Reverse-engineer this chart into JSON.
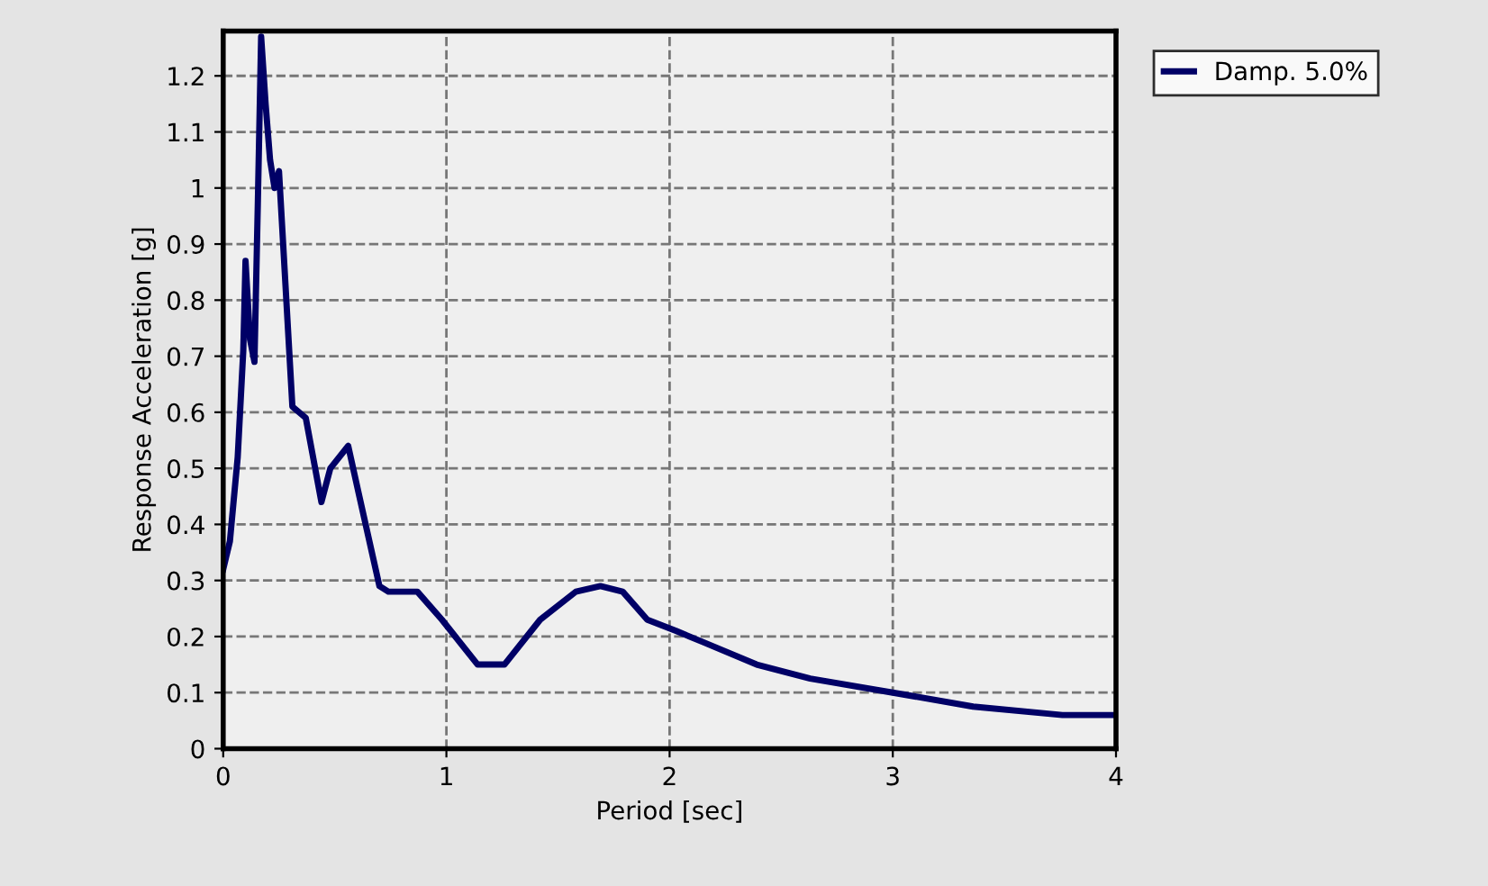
{
  "chart_data": {
    "type": "line",
    "xlabel": "Period [sec]",
    "ylabel": "Response Acceleration [g]",
    "xlim": [
      0,
      4
    ],
    "ylim": [
      0,
      1.28
    ],
    "xticks": [
      0,
      1,
      2,
      3,
      4
    ],
    "yticks": [
      0,
      0.1,
      0.2,
      0.3,
      0.4,
      0.5,
      0.6,
      0.7,
      0.8,
      0.9,
      1,
      1.1,
      1.2
    ],
    "grid": true,
    "legend": "top right",
    "marker": "none",
    "line_style": "solid",
    "series": [
      {
        "name": "Damp. 5.0%",
        "color": "#000066",
        "x": [
          0,
          0.03,
          0.065,
          0.09,
          0.1,
          0.12,
          0.14,
          0.155,
          0.17,
          0.19,
          0.21,
          0.23,
          0.25,
          0.27,
          0.31,
          0.37,
          0.44,
          0.48,
          0.56,
          0.61,
          0.7,
          0.74,
          0.87,
          0.98,
          1.14,
          1.26,
          1.42,
          1.58,
          1.69,
          1.79,
          1.9,
          2.03,
          2.15,
          2.39,
          2.63,
          3.0,
          3.36,
          3.76,
          4.0
        ],
        "values": [
          0.32,
          0.37,
          0.52,
          0.71,
          0.87,
          0.73,
          0.69,
          0.97,
          1.27,
          1.15,
          1.05,
          1.0,
          1.03,
          0.89,
          0.61,
          0.59,
          0.44,
          0.5,
          0.54,
          0.45,
          0.29,
          0.28,
          0.28,
          0.23,
          0.15,
          0.15,
          0.23,
          0.28,
          0.29,
          0.28,
          0.23,
          0.21,
          0.19,
          0.15,
          0.125,
          0.1,
          0.075,
          0.06,
          0.06
        ]
      }
    ]
  }
}
